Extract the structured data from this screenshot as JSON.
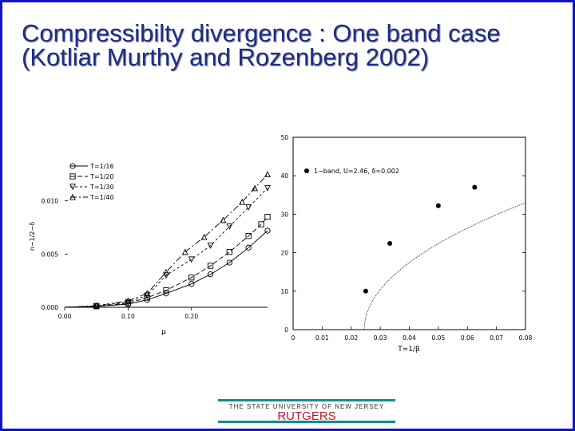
{
  "slide": {
    "title": "Compressibilty divergence : One band case (Kotliar Murthy and Rozenberg 2002)",
    "footer_university": "THE STATE UNIVERSITY OF NEW JERSEY",
    "footer_brand": "RUTGERS",
    "colors": {
      "border": "#1414c8",
      "title": "#1c2c8c",
      "footer_bar": "#138c8c",
      "brand": "#c8102e"
    }
  },
  "chart_data": [
    {
      "type": "line",
      "xlabel": "μ",
      "ylabel": "n−1/2−δ",
      "xlim": [
        0.0,
        0.32
      ],
      "ylim": [
        0.0,
        0.0135
      ],
      "xticks": [
        {
          "v": 0.0,
          "label": "0.00"
        },
        {
          "v": 0.1,
          "label": "0.10"
        },
        {
          "v": 0.2,
          "label": "0.20"
        }
      ],
      "yticks": [
        {
          "v": 0.0,
          "label": "0.000"
        },
        {
          "v": 0.005,
          "label": "0.005"
        },
        {
          "v": 0.01,
          "label": "0.010"
        }
      ],
      "legend_position": "top-left",
      "series": [
        {
          "name": "T=1/16",
          "marker": "circle",
          "dash": "",
          "x": [
            0.0,
            0.05,
            0.1,
            0.13,
            0.16,
            0.2,
            0.23,
            0.26,
            0.29,
            0.32
          ],
          "y": [
            0.0,
            8e-05,
            0.0003,
            0.0007,
            0.0013,
            0.0022,
            0.0031,
            0.0042,
            0.0056,
            0.0072
          ]
        },
        {
          "name": "T=1/20",
          "marker": "square",
          "dash": "6,3",
          "x": [
            0.0,
            0.05,
            0.1,
            0.13,
            0.16,
            0.2,
            0.23,
            0.26,
            0.29,
            0.31,
            0.32
          ],
          "y": [
            0.0,
            0.0001,
            0.0004,
            0.0009,
            0.0016,
            0.0028,
            0.0039,
            0.0052,
            0.0067,
            0.0078,
            0.0085
          ]
        },
        {
          "name": "T=1/30",
          "marker": "triangle-down",
          "dash": "3,3",
          "x": [
            0.0,
            0.05,
            0.1,
            0.13,
            0.16,
            0.2,
            0.23,
            0.26,
            0.29,
            0.32
          ],
          "y": [
            0.0,
            0.00012,
            0.0005,
            0.0011,
            0.003,
            0.0045,
            0.0058,
            0.0076,
            0.0094,
            0.0112
          ]
        },
        {
          "name": "T=1/40",
          "marker": "triangle",
          "dash": "8,3,2,3",
          "x": [
            0.0,
            0.05,
            0.1,
            0.13,
            0.16,
            0.19,
            0.22,
            0.25,
            0.28,
            0.3,
            0.32
          ],
          "y": [
            0.0,
            0.00015,
            0.0006,
            0.0013,
            0.0033,
            0.0052,
            0.0066,
            0.0082,
            0.0099,
            0.0112,
            0.0125
          ]
        }
      ]
    },
    {
      "type": "line",
      "xlabel": "T=1/β",
      "ylabel": "",
      "xlim": [
        0.0,
        0.08
      ],
      "ylim": [
        0,
        50
      ],
      "xticks": [
        {
          "v": 0.0,
          "label": "0"
        },
        {
          "v": 0.01,
          "label": "0.01"
        },
        {
          "v": 0.02,
          "label": "0.02"
        },
        {
          "v": 0.03,
          "label": "0.03"
        },
        {
          "v": 0.04,
          "label": "0.04"
        },
        {
          "v": 0.05,
          "label": "0.05"
        },
        {
          "v": 0.06,
          "label": "0.06"
        },
        {
          "v": 0.07,
          "label": "0.07"
        },
        {
          "v": 0.08,
          "label": "0.08"
        }
      ],
      "yticks": [
        {
          "v": 0,
          "label": "0"
        },
        {
          "v": 10,
          "label": "10"
        },
        {
          "v": 20,
          "label": "20"
        },
        {
          "v": 30,
          "label": "30"
        },
        {
          "v": 40,
          "label": "40"
        },
        {
          "v": 50,
          "label": "50"
        }
      ],
      "legend_position": "top-left",
      "series": [
        {
          "name": "1−band, U=2.46, δ=0.002",
          "marker": "dot",
          "x": [
            0.025,
            0.0333,
            0.05,
            0.0625
          ],
          "y": [
            10,
            22.4,
            32.2,
            37
          ]
        }
      ],
      "fit_curve": {
        "tc": 0.0245,
        "amp": 140,
        "exponent": 0.5,
        "x_end": 0.08
      }
    }
  ]
}
